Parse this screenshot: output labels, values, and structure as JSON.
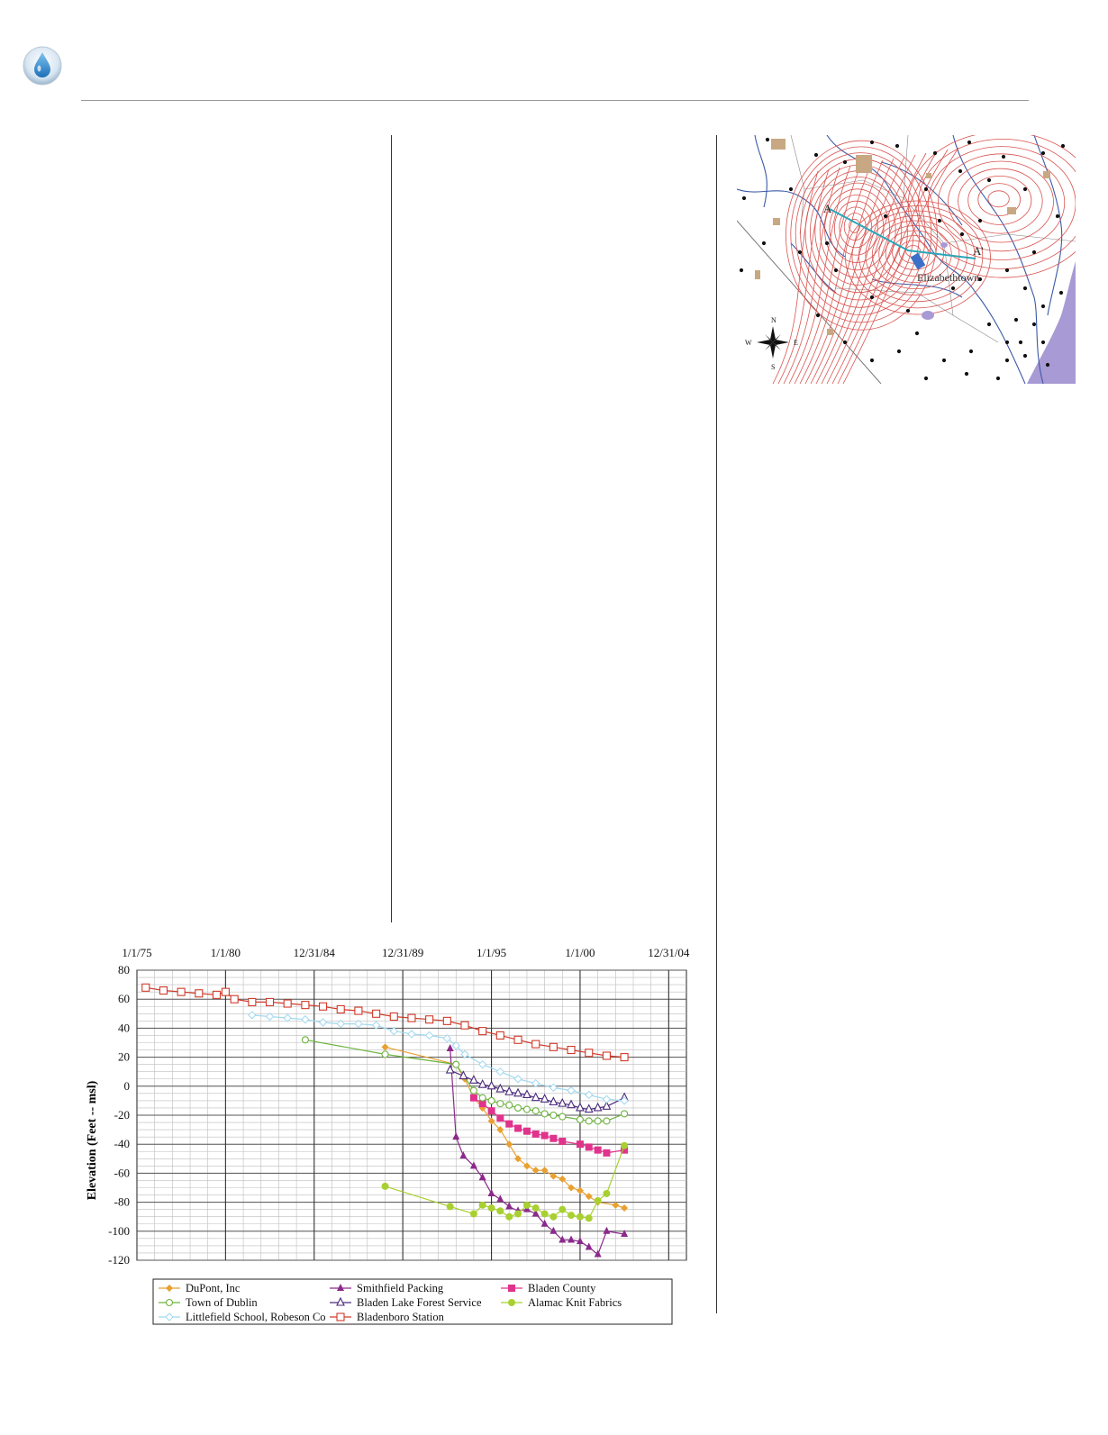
{
  "header": {
    "icon": "water-drop-icon"
  },
  "map": {
    "labels": {
      "section_start": "A",
      "section_end": "A'",
      "city": "Elizabethtown",
      "compass_n": "N",
      "compass_s": "S",
      "compass_e": "E",
      "compass_w": "W"
    },
    "colors": {
      "contours": "#d9534f",
      "rivers": "#3c5aa6",
      "section_line": "#2aa6b8",
      "ocean": "#a89ad4",
      "urban": "#c8a882"
    }
  },
  "chart_data": {
    "type": "line",
    "ylabel": "Elevation (Feet -- msl)",
    "ylim": [
      -120,
      80
    ],
    "yticks": [
      80,
      60,
      40,
      20,
      0,
      -20,
      -40,
      -60,
      -80,
      -100,
      -120
    ],
    "xlim": [
      "1975-01-01",
      "2005-12-31"
    ],
    "xticks": [
      {
        "label": "1/1/75",
        "date": "1975-01-01"
      },
      {
        "label": "1/1/80",
        "date": "1980-01-01"
      },
      {
        "label": "12/31/84",
        "date": "1984-12-31"
      },
      {
        "label": "12/31/89",
        "date": "1989-12-31"
      },
      {
        "label": "1/1/95",
        "date": "1995-01-01"
      },
      {
        "label": "1/1/00",
        "date": "2000-01-01"
      },
      {
        "label": "12/31/04",
        "date": "2004-12-31"
      }
    ],
    "grid": true,
    "legend_position": "bottom",
    "series": [
      {
        "name": "DuPont, Inc",
        "color": "#e8a030",
        "marker": "diamond",
        "points": [
          [
            "1989-01-01",
            27
          ],
          [
            "1993-01-01",
            15
          ],
          [
            "1993-07-01",
            5
          ],
          [
            "1994-01-01",
            -8
          ],
          [
            "1994-07-01",
            -15
          ],
          [
            "1995-01-01",
            -24
          ],
          [
            "1995-07-01",
            -30
          ],
          [
            "1996-01-01",
            -40
          ],
          [
            "1996-07-01",
            -50
          ],
          [
            "1997-01-01",
            -55
          ],
          [
            "1997-07-01",
            -58
          ],
          [
            "1998-01-01",
            -58
          ],
          [
            "1998-07-01",
            -62
          ],
          [
            "1999-01-01",
            -64
          ],
          [
            "1999-07-01",
            -70
          ],
          [
            "2000-01-01",
            -72
          ],
          [
            "2000-07-01",
            -76
          ],
          [
            "2001-01-01",
            -80
          ],
          [
            "2002-01-01",
            -82
          ],
          [
            "2002-07-01",
            -84
          ]
        ]
      },
      {
        "name": "Smithfield Packing",
        "color": "#8b2a8b",
        "marker": "triangle-filled",
        "points": [
          [
            "1992-09-01",
            26
          ],
          [
            "1993-01-01",
            -35
          ],
          [
            "1993-06-01",
            -48
          ],
          [
            "1994-01-01",
            -55
          ],
          [
            "1994-07-01",
            -63
          ],
          [
            "1995-01-01",
            -74
          ],
          [
            "1995-07-01",
            -78
          ],
          [
            "1996-01-01",
            -83
          ],
          [
            "1996-07-01",
            -86
          ],
          [
            "1997-01-01",
            -85
          ],
          [
            "1997-07-01",
            -88
          ],
          [
            "1998-01-01",
            -95
          ],
          [
            "1998-07-01",
            -100
          ],
          [
            "1999-01-01",
            -106
          ],
          [
            "1999-07-01",
            -106
          ],
          [
            "2000-01-01",
            -107
          ],
          [
            "2000-07-01",
            -111
          ],
          [
            "2001-01-01",
            -116
          ],
          [
            "2001-07-01",
            -100
          ],
          [
            "2002-07-01",
            -102
          ]
        ]
      },
      {
        "name": "Bladen County",
        "color": "#e0338c",
        "marker": "square-filled",
        "points": [
          [
            "1994-01-01",
            -8
          ],
          [
            "1994-07-01",
            -12
          ],
          [
            "1995-01-01",
            -17
          ],
          [
            "1995-07-01",
            -22
          ],
          [
            "1996-01-01",
            -26
          ],
          [
            "1996-07-01",
            -29
          ],
          [
            "1997-01-01",
            -31
          ],
          [
            "1997-07-01",
            -33
          ],
          [
            "1998-01-01",
            -34
          ],
          [
            "1998-07-01",
            -36
          ],
          [
            "1999-01-01",
            -38
          ],
          [
            "2000-01-01",
            -40
          ],
          [
            "2000-07-01",
            -42
          ],
          [
            "2001-01-01",
            -44
          ],
          [
            "2001-07-01",
            -46
          ],
          [
            "2002-07-01",
            -44
          ]
        ]
      },
      {
        "name": "Town of Dublin",
        "color": "#6db33f",
        "marker": "circle-open",
        "points": [
          [
            "1984-07-01",
            32
          ],
          [
            "1989-01-01",
            22
          ],
          [
            "1993-01-01",
            15
          ],
          [
            "1994-01-01",
            -3
          ],
          [
            "1994-07-01",
            -8
          ],
          [
            "1995-01-01",
            -10
          ],
          [
            "1995-07-01",
            -12
          ],
          [
            "1996-01-01",
            -13
          ],
          [
            "1996-07-01",
            -15
          ],
          [
            "1997-01-01",
            -16
          ],
          [
            "1997-07-01",
            -17
          ],
          [
            "1998-01-01",
            -19
          ],
          [
            "1998-07-01",
            -20
          ],
          [
            "1999-01-01",
            -21
          ],
          [
            "2000-01-01",
            -23
          ],
          [
            "2000-07-01",
            -24
          ],
          [
            "2001-01-01",
            -24
          ],
          [
            "2001-07-01",
            -24
          ],
          [
            "2002-07-01",
            -19
          ]
        ]
      },
      {
        "name": "Bladen Lake Forest Service",
        "color": "#4b2a7b",
        "marker": "triangle-open",
        "points": [
          [
            "1992-09-01",
            11
          ],
          [
            "1993-06-01",
            7
          ],
          [
            "1994-01-01",
            4
          ],
          [
            "1994-07-01",
            1
          ],
          [
            "1995-01-01",
            0
          ],
          [
            "1995-07-01",
            -2
          ],
          [
            "1996-01-01",
            -4
          ],
          [
            "1996-07-01",
            -5
          ],
          [
            "1997-01-01",
            -6
          ],
          [
            "1997-07-01",
            -8
          ],
          [
            "1998-01-01",
            -9
          ],
          [
            "1998-07-01",
            -11
          ],
          [
            "1999-01-01",
            -12
          ],
          [
            "1999-07-01",
            -13
          ],
          [
            "2000-01-01",
            -15
          ],
          [
            "2000-07-01",
            -16
          ],
          [
            "2001-01-01",
            -15
          ],
          [
            "2001-07-01",
            -14
          ],
          [
            "2002-07-01",
            -8
          ]
        ]
      },
      {
        "name": "Alamac Knit Fabrics",
        "color": "#a8d030",
        "marker": "circle-filled",
        "points": [
          [
            "1989-01-01",
            -69
          ],
          [
            "1992-09-01",
            -83
          ],
          [
            "1994-01-01",
            -88
          ],
          [
            "1994-07-01",
            -82
          ],
          [
            "1995-01-01",
            -84
          ],
          [
            "1995-07-01",
            -86
          ],
          [
            "1996-01-01",
            -90
          ],
          [
            "1996-07-01",
            -88
          ],
          [
            "1997-01-01",
            -82
          ],
          [
            "1997-07-01",
            -84
          ],
          [
            "1998-01-01",
            -88
          ],
          [
            "1998-07-01",
            -90
          ],
          [
            "1999-01-01",
            -85
          ],
          [
            "1999-07-01",
            -89
          ],
          [
            "2000-01-01",
            -90
          ],
          [
            "2000-07-01",
            -91
          ],
          [
            "2001-01-01",
            -79
          ],
          [
            "2001-07-01",
            -74
          ],
          [
            "2002-07-01",
            -41
          ]
        ]
      },
      {
        "name": "Littlefield School, Robeson Co",
        "color": "#a0d8ef",
        "marker": "diamond-open",
        "points": [
          [
            "1981-07-01",
            49
          ],
          [
            "1982-07-01",
            48
          ],
          [
            "1983-07-01",
            47
          ],
          [
            "1984-07-01",
            46
          ],
          [
            "1985-07-01",
            44
          ],
          [
            "1986-07-01",
            43
          ],
          [
            "1987-07-01",
            43
          ],
          [
            "1988-07-01",
            42
          ],
          [
            "1989-07-01",
            38
          ],
          [
            "1990-07-01",
            36
          ],
          [
            "1991-07-01",
            35
          ],
          [
            "1992-07-01",
            33
          ],
          [
            "1993-01-01",
            28
          ],
          [
            "1993-07-01",
            22
          ],
          [
            "1994-07-01",
            15
          ],
          [
            "1995-07-01",
            10
          ],
          [
            "1996-07-01",
            5
          ],
          [
            "1997-07-01",
            2
          ],
          [
            "1998-07-01",
            -1
          ],
          [
            "1999-07-01",
            -3
          ],
          [
            "2000-07-01",
            -6
          ],
          [
            "2001-07-01",
            -9
          ],
          [
            "2002-07-01",
            -10
          ]
        ]
      },
      {
        "name": "Bladenboro Station",
        "color": "#d03a2a",
        "marker": "square-open",
        "points": [
          [
            "1975-07-01",
            68
          ],
          [
            "1976-07-01",
            66
          ],
          [
            "1977-07-01",
            65
          ],
          [
            "1978-07-01",
            64
          ],
          [
            "1979-07-01",
            63
          ],
          [
            "1980-01-01",
            65
          ],
          [
            "1980-07-01",
            60
          ],
          [
            "1981-07-01",
            58
          ],
          [
            "1982-07-01",
            58
          ],
          [
            "1983-07-01",
            57
          ],
          [
            "1984-07-01",
            56
          ],
          [
            "1985-07-01",
            55
          ],
          [
            "1986-07-01",
            53
          ],
          [
            "1987-07-01",
            52
          ],
          [
            "1988-07-01",
            50
          ],
          [
            "1989-07-01",
            48
          ],
          [
            "1990-07-01",
            47
          ],
          [
            "1991-07-01",
            46
          ],
          [
            "1992-07-01",
            45
          ],
          [
            "1993-07-01",
            42
          ],
          [
            "1994-07-01",
            38
          ],
          [
            "1995-07-01",
            35
          ],
          [
            "1996-07-01",
            32
          ],
          [
            "1997-07-01",
            29
          ],
          [
            "1998-07-01",
            27
          ],
          [
            "1999-07-01",
            25
          ],
          [
            "2000-07-01",
            23
          ],
          [
            "2001-07-01",
            21
          ],
          [
            "2002-07-01",
            20
          ]
        ]
      }
    ]
  }
}
